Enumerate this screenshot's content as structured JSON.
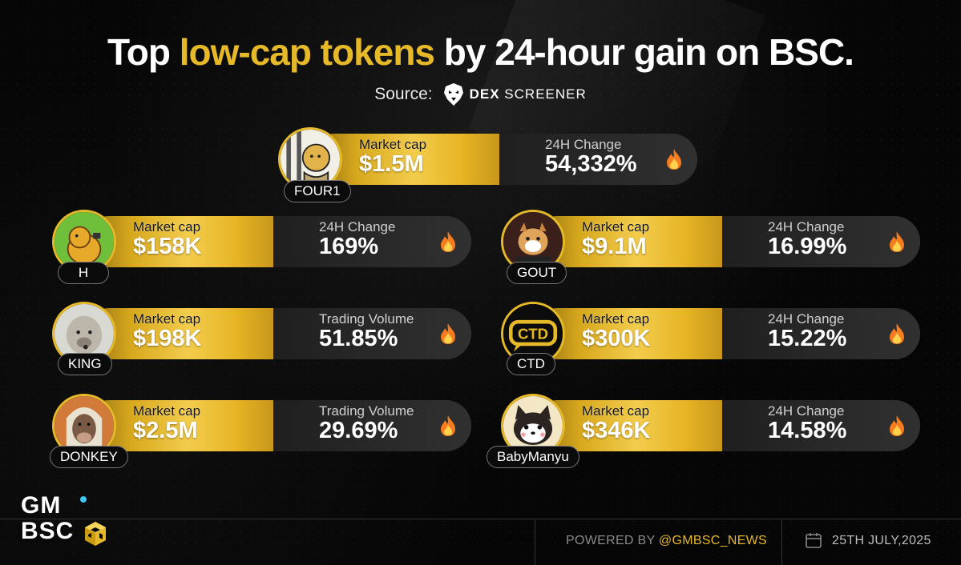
{
  "title": {
    "pre": "Top ",
    "highlight": "low-cap tokens",
    "post": " by 24-hour gain on BSC."
  },
  "source": {
    "label": "Source:",
    "brand_bold": "DEX",
    "brand_rest": "SCREENER"
  },
  "tokens": [
    {
      "name": "FOUR1",
      "mc_label": "Market cap",
      "mc_value": "$1.5M",
      "change_label": "24H Change",
      "change_value": "54,332%"
    },
    {
      "name": "H",
      "mc_label": "Market cap",
      "mc_value": "$158K",
      "change_label": "24H Change",
      "change_value": "169%"
    },
    {
      "name": "GOUT",
      "mc_label": "Market cap",
      "mc_value": "$9.1M",
      "change_label": "24H Change",
      "change_value": "16.99%"
    },
    {
      "name": "KING",
      "mc_label": "Market cap",
      "mc_value": "$198K",
      "change_label": "Trading Volume",
      "change_value": "51.85%"
    },
    {
      "name": "CTD",
      "mc_label": "Market cap",
      "mc_value": "$300K",
      "change_label": "24H Change",
      "change_value": "15.22%"
    },
    {
      "name": "DONKEY",
      "mc_label": "Market cap",
      "mc_value": "$2.5M",
      "change_label": "Trading Volume",
      "change_value": "29.69%"
    },
    {
      "name": "BabyManyu",
      "mc_label": "Market cap",
      "mc_value": "$346K",
      "change_label": "24H Change",
      "change_value": "14.58%"
    }
  ],
  "avatars": {
    "ctd_text": "CTD"
  },
  "logo": {
    "line1": "GM",
    "line2": "BSC"
  },
  "footer": {
    "powered_label": "POWERED BY ",
    "handle": "@GMBSC_NEWS",
    "date": "25TH JULY,2025"
  },
  "colors": {
    "gold": "#e6b928",
    "card_dark": "#2a2a2a",
    "accent_blue": "#3fc7f3"
  },
  "icons": {
    "change": "fire-icon",
    "date": "calendar-icon",
    "source": "dexscreener-logo-icon"
  }
}
